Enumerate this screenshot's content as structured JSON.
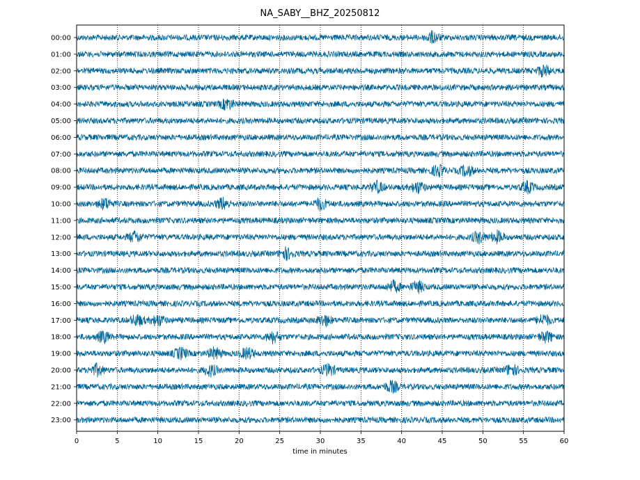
{
  "chart_data": {
    "type": "line",
    "title": "NA_SABY__BHZ_20250812",
    "xlabel": "time in minutes",
    "ylabel": "",
    "xlim": [
      0,
      60
    ],
    "x_ticks": [
      "0",
      "5",
      "10",
      "15",
      "20",
      "25",
      "30",
      "35",
      "40",
      "45",
      "50",
      "55",
      "60"
    ],
    "y_tick_labels": [
      "00:00",
      "01:00",
      "02:00",
      "03:00",
      "04:00",
      "05:00",
      "06:00",
      "07:00",
      "08:00",
      "09:00",
      "10:00",
      "11:00",
      "12:00",
      "13:00",
      "14:00",
      "15:00",
      "16:00",
      "17:00",
      "18:00",
      "19:00",
      "20:00",
      "21:00",
      "22:00",
      "23:00"
    ],
    "grid": "vertical dotted at each 5 minutes",
    "trace_color": "#006699",
    "series": [
      {
        "hour": "00:00",
        "events": [
          43.8
        ]
      },
      {
        "hour": "01:00",
        "events": []
      },
      {
        "hour": "02:00",
        "events": [
          57.5
        ]
      },
      {
        "hour": "03:00",
        "events": []
      },
      {
        "hour": "04:00",
        "events": [
          18.5
        ]
      },
      {
        "hour": "05:00",
        "events": []
      },
      {
        "hour": "06:00",
        "events": []
      },
      {
        "hour": "07:00",
        "events": []
      },
      {
        "hour": "08:00",
        "events": [
          44.5,
          48.0
        ]
      },
      {
        "hour": "09:00",
        "events": [
          37.0,
          42.0,
          55.5
        ]
      },
      {
        "hour": "10:00",
        "events": [
          3.5,
          18.0,
          30.0
        ]
      },
      {
        "hour": "11:00",
        "events": []
      },
      {
        "hour": "12:00",
        "events": [
          7.2,
          49.5,
          51.8
        ]
      },
      {
        "hour": "13:00",
        "events": [
          25.8
        ]
      },
      {
        "hour": "14:00",
        "events": []
      },
      {
        "hour": "15:00",
        "events": [
          39.0,
          42.0
        ]
      },
      {
        "hour": "16:00",
        "events": []
      },
      {
        "hour": "17:00",
        "events": [
          7.5,
          10.0,
          30.5,
          57.5
        ]
      },
      {
        "hour": "18:00",
        "events": [
          3.3,
          24.2,
          57.8
        ]
      },
      {
        "hour": "19:00",
        "events": [
          12.8,
          17.0,
          21.0
        ]
      },
      {
        "hour": "20:00",
        "events": [
          2.5,
          16.5,
          31.0,
          53.5
        ]
      },
      {
        "hour": "21:00",
        "events": [
          38.8
        ]
      },
      {
        "hour": "22:00",
        "events": []
      },
      {
        "hour": "23:00",
        "events": []
      }
    ]
  }
}
